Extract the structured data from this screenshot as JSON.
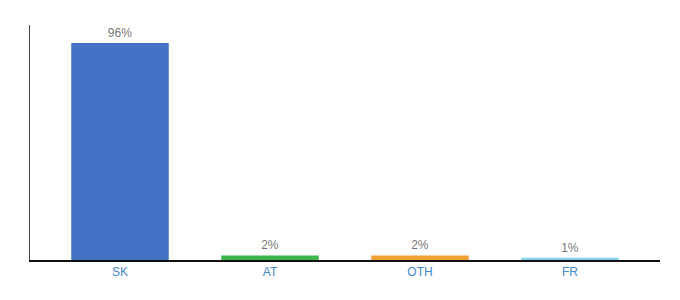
{
  "chart_data": {
    "type": "bar",
    "categories": [
      "SK",
      "AT",
      "OTH",
      "FR"
    ],
    "values": [
      96,
      2,
      2,
      1
    ],
    "value_labels": [
      "96%",
      "2%",
      "2%",
      "1%"
    ],
    "colors": [
      "#4472c4",
      "#3cb54a",
      "#f0a030",
      "#87ceeb"
    ],
    "ylim": [
      0,
      104
    ],
    "grid": false,
    "data_labels": true,
    "tick_labels": "x"
  }
}
